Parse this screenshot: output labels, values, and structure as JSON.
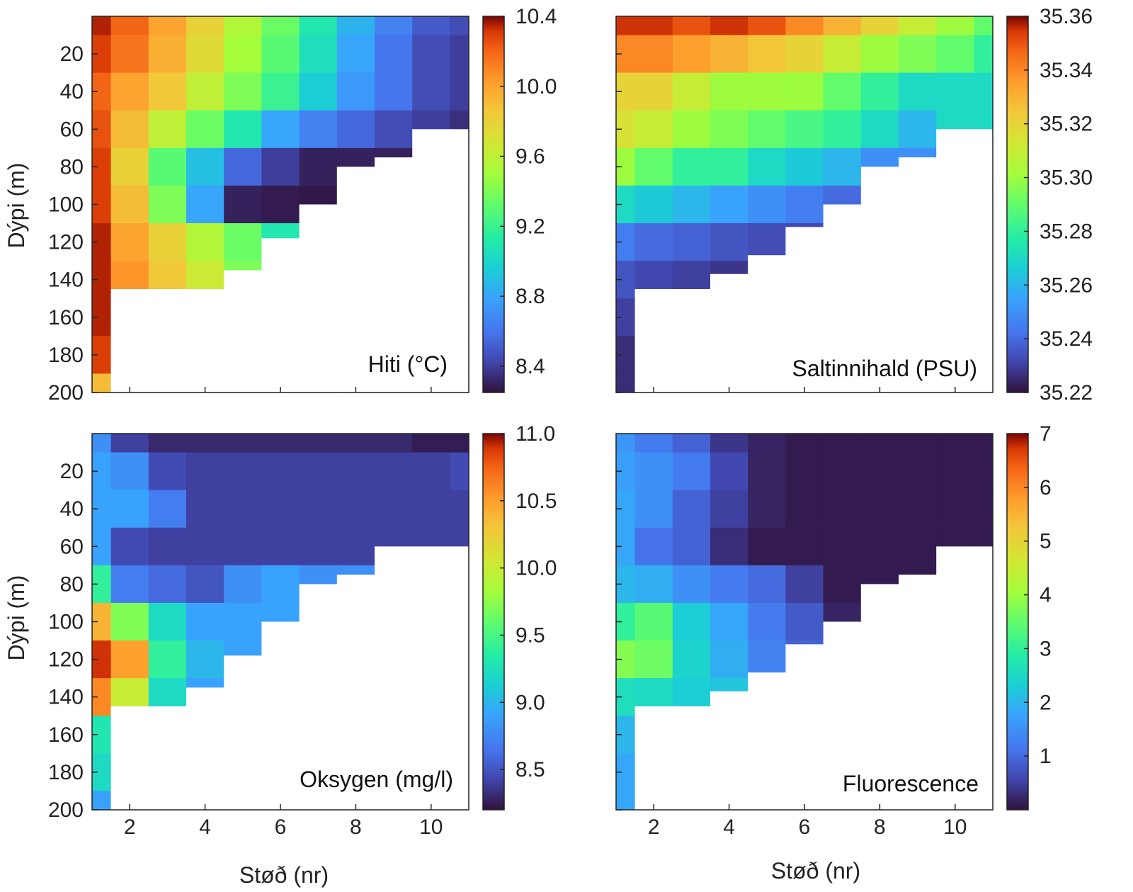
{
  "figure": {
    "y_axis_title": "Dýpi (m)",
    "x_axis_title": "Støð (nr)"
  },
  "chart_data": [
    {
      "type": "heatmap",
      "title": "Hiti (°C)",
      "ylabel": "Dýpi (m)",
      "xlabel": "",
      "xlim": [
        1,
        11
      ],
      "ylim": [
        200,
        0
      ],
      "x_ticks": [
        2,
        4,
        6,
        8,
        10
      ],
      "y_ticks": [
        20,
        40,
        60,
        80,
        100,
        120,
        140,
        160,
        180,
        200
      ],
      "colorbar": {
        "min": 8.25,
        "max": 10.4,
        "ticks": [
          "10.4",
          "10.0",
          "9.6",
          "9.2",
          "8.8",
          "8.4"
        ],
        "tick_values": [
          10.4,
          10.0,
          9.6,
          9.2,
          8.8,
          8.4
        ]
      },
      "x": [
        1,
        2,
        3,
        4,
        5,
        6,
        7,
        8,
        9,
        10,
        11
      ],
      "bottom_depth": [
        200,
        145,
        145,
        145,
        135,
        118,
        100,
        80,
        75,
        60,
        60
      ],
      "depths": [
        0,
        20,
        40,
        60,
        80,
        100,
        120,
        140,
        160,
        180,
        200
      ],
      "values": [
        [
          10.35,
          10.2,
          10.0,
          9.8,
          9.55,
          9.35,
          9.1,
          8.85,
          8.65,
          8.5,
          8.45
        ],
        [
          10.3,
          10.15,
          9.95,
          9.75,
          9.5,
          9.3,
          9.05,
          8.8,
          8.6,
          8.45,
          8.4
        ],
        [
          10.2,
          10.0,
          9.85,
          9.6,
          9.4,
          9.2,
          8.95,
          8.75,
          8.6,
          8.45,
          8.4
        ],
        [
          10.25,
          9.9,
          9.6,
          9.35,
          9.1,
          8.8,
          8.65,
          8.55,
          8.45,
          8.4,
          8.35
        ],
        [
          10.3,
          9.8,
          9.3,
          8.9,
          8.55,
          8.4,
          8.3,
          8.3,
          8.3,
          8.3,
          8.3
        ],
        [
          10.3,
          9.9,
          9.4,
          8.8,
          8.3,
          8.28,
          8.27,
          8.27,
          8.27,
          8.27,
          8.27
        ],
        [
          10.35,
          10.0,
          9.8,
          9.55,
          9.35,
          9.1,
          8.85,
          8.6,
          8.4,
          8.28,
          8.27
        ],
        [
          10.35,
          10.05,
          9.85,
          9.65,
          9.4,
          9.2,
          8.9,
          8.6,
          8.35,
          8.28,
          8.27
        ],
        [
          10.35,
          10.0,
          9.8,
          9.55,
          9.3,
          9.1,
          8.9,
          8.7,
          8.5,
          8.35,
          8.27
        ],
        [
          10.3,
          9.9,
          9.6,
          9.35,
          9.1,
          8.9,
          8.7,
          8.5,
          8.35,
          8.27,
          8.27
        ],
        [
          9.9,
          9.3,
          8.75,
          8.45,
          8.3,
          8.28,
          8.27,
          8.27,
          8.27,
          8.27,
          8.27
        ]
      ]
    },
    {
      "type": "heatmap",
      "title": "Saltinnihald (PSU)",
      "ylabel": "",
      "xlabel": "",
      "xlim": [
        1,
        11
      ],
      "ylim": [
        200,
        0
      ],
      "x_ticks": [
        2,
        4,
        6,
        8,
        10
      ],
      "y_ticks": [
        20,
        40,
        60,
        80,
        100,
        120,
        140,
        160,
        180,
        200
      ],
      "colorbar": {
        "min": 35.22,
        "max": 35.36,
        "ticks": [
          "35.36",
          "35.34",
          "35.32",
          "35.30",
          "35.28",
          "35.26",
          "35.24",
          "35.22"
        ],
        "tick_values": [
          35.36,
          35.34,
          35.32,
          35.3,
          35.28,
          35.26,
          35.24,
          35.22
        ]
      },
      "x": [
        1,
        2,
        3,
        4,
        5,
        6,
        7,
        8,
        9,
        10,
        11
      ],
      "bottom_depth": [
        200,
        145,
        145,
        137,
        127,
        112,
        100,
        80,
        75,
        60,
        60
      ],
      "depths": [
        0,
        20,
        40,
        60,
        80,
        100,
        120,
        140,
        160,
        180,
        200
      ],
      "values": [
        [
          35.355,
          35.355,
          35.35,
          35.355,
          35.35,
          35.34,
          35.33,
          35.32,
          35.31,
          35.3,
          35.29
        ],
        [
          35.34,
          35.34,
          35.335,
          35.33,
          35.325,
          35.32,
          35.31,
          35.3,
          35.295,
          35.29,
          35.28
        ],
        [
          35.32,
          35.32,
          35.31,
          35.3,
          35.3,
          35.3,
          35.29,
          35.28,
          35.27,
          35.27,
          35.27
        ],
        [
          35.315,
          35.31,
          35.3,
          35.295,
          35.29,
          35.285,
          35.28,
          35.27,
          35.26,
          35.27,
          35.27
        ],
        [
          35.3,
          35.29,
          35.28,
          35.28,
          35.27,
          35.265,
          35.26,
          35.25,
          35.25,
          35.25,
          35.25
        ],
        [
          35.27,
          35.265,
          35.26,
          35.255,
          35.25,
          35.245,
          35.24,
          35.24,
          35.24,
          35.24,
          35.24
        ],
        [
          35.245,
          35.24,
          35.238,
          35.235,
          35.233,
          35.232,
          35.23,
          35.23,
          35.23,
          35.23,
          35.23
        ],
        [
          35.235,
          35.232,
          35.23,
          35.228,
          35.226,
          35.225,
          35.224,
          35.224,
          35.224,
          35.224,
          35.224
        ],
        [
          35.23,
          35.228,
          35.226,
          35.225,
          35.224,
          35.223,
          35.223,
          35.223,
          35.223,
          35.223,
          35.223
        ],
        [
          35.226,
          35.225,
          35.224,
          35.223,
          35.223,
          35.222,
          35.222,
          35.222,
          35.222,
          35.222,
          35.222
        ],
        [
          35.226,
          35.225,
          35.224,
          35.223,
          35.223,
          35.222,
          35.222,
          35.222,
          35.222,
          35.222,
          35.222
        ]
      ]
    },
    {
      "type": "heatmap",
      "title": "Oksygen (mg/l)",
      "ylabel": "Dýpi (m)",
      "xlabel": "Støð (nr)",
      "xlim": [
        1,
        11
      ],
      "ylim": [
        200,
        0
      ],
      "x_ticks": [
        2,
        4,
        6,
        8,
        10
      ],
      "y_ticks": [
        20,
        40,
        60,
        80,
        100,
        120,
        140,
        160,
        180,
        200
      ],
      "colorbar": {
        "min": 8.2,
        "max": 11.0,
        "ticks": [
          "11.0",
          "10.5",
          "10.0",
          "9.5",
          "9.0",
          "8.5"
        ],
        "tick_values": [
          11.0,
          10.5,
          10.0,
          9.5,
          9.0,
          8.5
        ]
      },
      "x": [
        1,
        2,
        3,
        4,
        5,
        6,
        7,
        8,
        9,
        10,
        11
      ],
      "bottom_depth": [
        200,
        145,
        145,
        135,
        118,
        100,
        80,
        75,
        60,
        60,
        60
      ],
      "depths": [
        0,
        20,
        40,
        60,
        80,
        100,
        120,
        140,
        160,
        180,
        200
      ],
      "values": [
        [
          8.8,
          8.4,
          8.3,
          8.3,
          8.3,
          8.3,
          8.3,
          8.3,
          8.3,
          8.25,
          8.25
        ],
        [
          8.9,
          8.8,
          8.45,
          8.4,
          8.4,
          8.4,
          8.4,
          8.4,
          8.4,
          8.4,
          8.45
        ],
        [
          8.9,
          8.9,
          8.7,
          8.4,
          8.4,
          8.4,
          8.4,
          8.4,
          8.4,
          8.4,
          8.4
        ],
        [
          8.9,
          8.45,
          8.4,
          8.4,
          8.4,
          8.4,
          8.4,
          8.4,
          8.4,
          8.4,
          8.4
        ],
        [
          9.4,
          8.7,
          8.6,
          8.5,
          8.8,
          8.9,
          8.8,
          8.8,
          8.8,
          8.8,
          8.8
        ],
        [
          10.4,
          9.7,
          9.2,
          8.9,
          8.9,
          8.9,
          8.8,
          8.8,
          8.8,
          8.8,
          8.8
        ],
        [
          10.9,
          10.5,
          9.4,
          9.0,
          8.9,
          8.9,
          8.8,
          8.8,
          8.8,
          8.8,
          8.8
        ],
        [
          10.6,
          10.0,
          9.2,
          8.9,
          8.9,
          8.8,
          8.8,
          8.8,
          8.8,
          8.8,
          8.8
        ],
        [
          9.3,
          9.1,
          8.95,
          8.9,
          8.9,
          8.9,
          8.8,
          8.8,
          8.8,
          8.8,
          8.8
        ],
        [
          9.2,
          9.2,
          9.1,
          9.0,
          8.9,
          8.9,
          8.8,
          8.8,
          8.8,
          8.8,
          8.8
        ],
        [
          8.9,
          8.9,
          8.9,
          8.9,
          8.9,
          8.9,
          8.8,
          8.8,
          8.8,
          8.8,
          8.8
        ]
      ]
    },
    {
      "type": "heatmap",
      "title": "Fluorescence",
      "ylabel": "",
      "xlabel": "Støð (nr)",
      "xlim": [
        1,
        11
      ],
      "ylim": [
        200,
        0
      ],
      "x_ticks": [
        2,
        4,
        6,
        8,
        10
      ],
      "y_ticks": [
        20,
        40,
        60,
        80,
        100,
        120,
        140,
        160,
        180,
        200
      ],
      "colorbar": {
        "min": 0,
        "max": 7,
        "ticks": [
          "7",
          "6",
          "5",
          "4",
          "3",
          "2",
          "1"
        ],
        "tick_values": [
          7,
          6,
          5,
          4,
          3,
          2,
          1
        ]
      },
      "x": [
        1,
        2,
        3,
        4,
        5,
        6,
        7,
        8,
        9,
        10,
        11
      ],
      "bottom_depth": [
        200,
        145,
        145,
        137,
        127,
        112,
        100,
        80,
        75,
        60,
        60
      ],
      "depths": [
        0,
        20,
        40,
        60,
        80,
        100,
        120,
        140,
        160,
        180,
        200
      ],
      "values": [
        [
          1.6,
          1.2,
          0.9,
          0.4,
          0.2,
          0.1,
          0.1,
          0.1,
          0.1,
          0.1,
          0.1
        ],
        [
          1.7,
          1.5,
          1.2,
          0.6,
          0.2,
          0.1,
          0.1,
          0.1,
          0.1,
          0.1,
          0.1
        ],
        [
          1.8,
          1.5,
          0.9,
          0.5,
          0.2,
          0.1,
          0.1,
          0.1,
          0.1,
          0.1,
          0.1
        ],
        [
          1.8,
          1.1,
          0.9,
          0.3,
          0.1,
          0.1,
          0.1,
          0.1,
          0.1,
          0.1,
          0.1
        ],
        [
          2.0,
          1.9,
          1.5,
          1.2,
          1.0,
          0.5,
          0.1,
          0.1,
          0.1,
          0.1,
          0.1
        ],
        [
          3.0,
          3.4,
          2.3,
          1.8,
          1.2,
          0.8,
          0.2,
          0.1,
          0.1,
          0.1,
          0.1
        ],
        [
          3.8,
          3.6,
          2.4,
          1.9,
          1.3,
          0.9,
          0.2,
          0.1,
          0.1,
          0.1,
          0.1
        ],
        [
          2.6,
          2.5,
          2.3,
          2.2,
          1.8,
          1.2,
          0.5,
          0.1,
          0.1,
          0.1,
          0.1
        ],
        [
          2.0,
          2.0,
          1.9,
          1.9,
          1.8,
          1.2,
          0.5,
          0.1,
          0.1,
          0.1,
          0.1
        ],
        [
          1.8,
          1.9,
          2.0,
          2.1,
          1.9,
          1.4,
          0.6,
          0.1,
          0.1,
          0.1,
          0.1
        ],
        [
          1.8,
          1.9,
          1.9,
          2.0,
          1.9,
          1.5,
          0.6,
          0.1,
          0.1,
          0.1,
          0.1
        ]
      ]
    }
  ]
}
